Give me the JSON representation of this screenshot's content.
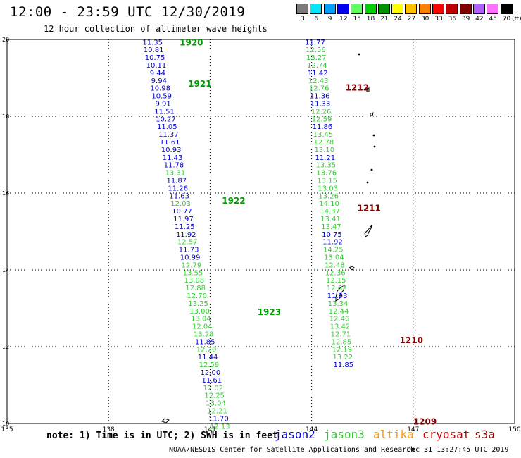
{
  "header": {
    "title": "12:00 - 23:59 UTC 12/30/2019",
    "subtitle": "12 hour collection of altimeter wave heights"
  },
  "legend": {
    "unit": "(ft)",
    "items": [
      {
        "label": "3",
        "color": "#7a7a7a"
      },
      {
        "label": "6",
        "color": "#00e8ff"
      },
      {
        "label": "9",
        "color": "#00a0ff"
      },
      {
        "label": "12",
        "color": "#0000ee"
      },
      {
        "label": "15",
        "color": "#60ff60"
      },
      {
        "label": "18",
        "color": "#00d000"
      },
      {
        "label": "21",
        "color": "#009000"
      },
      {
        "label": "24",
        "color": "#ffff00"
      },
      {
        "label": "27",
        "color": "#ffc000"
      },
      {
        "label": "30",
        "color": "#ff8000"
      },
      {
        "label": "33",
        "color": "#ff0000"
      },
      {
        "label": "36",
        "color": "#c00000"
      },
      {
        "label": "39",
        "color": "#800000"
      },
      {
        "label": "42",
        "color": "#b060ff"
      },
      {
        "label": "45",
        "color": "#ff70ff"
      },
      {
        "label": "70",
        "color": "#000000"
      }
    ]
  },
  "map": {
    "lon_ticks": [
      "135",
      "138",
      "141",
      "144",
      "147",
      "150"
    ],
    "lat_ticks": [
      "20",
      "18",
      "16",
      "14",
      "12",
      "10"
    ],
    "colors": {
      "jason2": "#0000cc",
      "jason3": "#33cc33",
      "altika": "#ff9900",
      "cryosat": "#cc0000",
      "s3a": "#990000",
      "time": "#009900",
      "timeb": "#800000"
    },
    "track_a_labels": [
      {
        "time": "1920",
        "lat": 19.94
      },
      {
        "time": "1921",
        "lat": 18.86
      },
      {
        "time": "1922",
        "lat": 15.82
      },
      {
        "time": "1923",
        "lat": 12.92
      }
    ],
    "track_b_labels": [
      {
        "time": "1212",
        "lat": 18.76
      },
      {
        "time": "1211",
        "lat": 15.62
      },
      {
        "time": "1210",
        "lat": 12.18
      },
      {
        "time": "1209",
        "lat": 10.06
      }
    ],
    "track_a": [
      {
        "v": "11.35",
        "s": "j2",
        "lon": 139.3,
        "lat": 19.94
      },
      {
        "v": "10.81",
        "s": "j2",
        "lon": 139.33,
        "lat": 19.74
      },
      {
        "v": "10.75",
        "s": "j2",
        "lon": 139.37,
        "lat": 19.54
      },
      {
        "v": "10.11",
        "s": "j2",
        "lon": 139.41,
        "lat": 19.34
      },
      {
        "v": "9.44",
        "s": "j2",
        "lon": 139.45,
        "lat": 19.14
      },
      {
        "v": "9.94",
        "s": "j2",
        "lon": 139.49,
        "lat": 18.94
      },
      {
        "v": "10.98",
        "s": "j2",
        "lon": 139.53,
        "lat": 18.74
      },
      {
        "v": "10.59",
        "s": "j2",
        "lon": 139.57,
        "lat": 18.54
      },
      {
        "v": "9.91",
        "s": "j2",
        "lon": 139.61,
        "lat": 18.34
      },
      {
        "v": "11.51",
        "s": "j2",
        "lon": 139.65,
        "lat": 18.14
      },
      {
        "v": "10.27",
        "s": "j2",
        "lon": 139.69,
        "lat": 17.94
      },
      {
        "v": "11.05",
        "s": "j2",
        "lon": 139.73,
        "lat": 17.74
      },
      {
        "v": "11.37",
        "s": "j2",
        "lon": 139.77,
        "lat": 17.54
      },
      {
        "v": "11.61",
        "s": "j2",
        "lon": 139.81,
        "lat": 17.34
      },
      {
        "v": "10.93",
        "s": "j2",
        "lon": 139.85,
        "lat": 17.14
      },
      {
        "v": "11.43",
        "s": "j2",
        "lon": 139.89,
        "lat": 16.94
      },
      {
        "v": "11.78",
        "s": "j2",
        "lon": 139.93,
        "lat": 16.74
      },
      {
        "v": "13.31",
        "s": "j3",
        "lon": 139.97,
        "lat": 16.54
      },
      {
        "v": "11.87",
        "s": "j2",
        "lon": 140.01,
        "lat": 16.34
      },
      {
        "v": "11.26",
        "s": "j2",
        "lon": 140.05,
        "lat": 16.14
      },
      {
        "v": "11.63",
        "s": "j2",
        "lon": 140.09,
        "lat": 15.94
      },
      {
        "v": "12.03",
        "s": "j3",
        "lon": 140.13,
        "lat": 15.74
      },
      {
        "v": "10.77",
        "s": "j2",
        "lon": 140.17,
        "lat": 15.54
      },
      {
        "v": "11.97",
        "s": "j2",
        "lon": 140.21,
        "lat": 15.34
      },
      {
        "v": "11.25",
        "s": "j2",
        "lon": 140.25,
        "lat": 15.14
      },
      {
        "v": "11.92",
        "s": "j2",
        "lon": 140.29,
        "lat": 14.94
      },
      {
        "v": "12.57",
        "s": "j3",
        "lon": 140.33,
        "lat": 14.74
      },
      {
        "v": "11.73",
        "s": "j2",
        "lon": 140.37,
        "lat": 14.54
      },
      {
        "v": "10.99",
        "s": "j2",
        "lon": 140.41,
        "lat": 14.34
      },
      {
        "v": "12.79",
        "s": "j3",
        "lon": 140.45,
        "lat": 14.14
      },
      {
        "v": "13.55",
        "s": "j3",
        "lon": 140.49,
        "lat": 13.94
      },
      {
        "v": "13.08",
        "s": "j3",
        "lon": 140.53,
        "lat": 13.74
      },
      {
        "v": "12.88",
        "s": "j3",
        "lon": 140.57,
        "lat": 13.54
      },
      {
        "v": "12.70",
        "s": "j3",
        "lon": 140.61,
        "lat": 13.34
      },
      {
        "v": "13.25",
        "s": "j3",
        "lon": 140.65,
        "lat": 13.14
      },
      {
        "v": "13.00",
        "s": "j3",
        "lon": 140.69,
        "lat": 12.94
      },
      {
        "v": "13.04",
        "s": "j3",
        "lon": 140.73,
        "lat": 12.74
      },
      {
        "v": "12.04",
        "s": "j3",
        "lon": 140.77,
        "lat": 12.54
      },
      {
        "v": "13.28",
        "s": "j3",
        "lon": 140.81,
        "lat": 12.34
      },
      {
        "v": "11.85",
        "s": "j2",
        "lon": 140.85,
        "lat": 12.14
      },
      {
        "v": "12.20",
        "s": "j3",
        "lon": 140.89,
        "lat": 11.94
      },
      {
        "v": "11.44",
        "s": "j2",
        "lon": 140.93,
        "lat": 11.74
      },
      {
        "v": "12.59",
        "s": "j3",
        "lon": 140.97,
        "lat": 11.54
      },
      {
        "v": "12.00",
        "s": "j2",
        "lon": 141.01,
        "lat": 11.34
      },
      {
        "v": "11.61",
        "s": "j2",
        "lon": 141.05,
        "lat": 11.14
      },
      {
        "v": "12.02",
        "s": "j3",
        "lon": 141.09,
        "lat": 10.94
      },
      {
        "v": "12.25",
        "s": "j3",
        "lon": 141.13,
        "lat": 10.74
      },
      {
        "v": "13.04",
        "s": "j3",
        "lon": 141.17,
        "lat": 10.54
      },
      {
        "v": "12.21",
        "s": "j3",
        "lon": 141.21,
        "lat": 10.34
      },
      {
        "v": "11.70",
        "s": "j2",
        "lon": 141.25,
        "lat": 10.14
      },
      {
        "v": "12.13",
        "s": "j3",
        "lon": 141.29,
        "lat": 9.94
      }
    ],
    "track_b": [
      {
        "v": "11.77",
        "s": "j2",
        "lon": 144.1,
        "lat": 19.94
      },
      {
        "v": "12.56",
        "s": "j3",
        "lon": 144.12,
        "lat": 19.74
      },
      {
        "v": "13.27",
        "s": "j3",
        "lon": 144.14,
        "lat": 19.54
      },
      {
        "v": "12.74",
        "s": "j3",
        "lon": 144.16,
        "lat": 19.34
      },
      {
        "v": "11.42",
        "s": "j2",
        "lon": 144.18,
        "lat": 19.14
      },
      {
        "v": "12.43",
        "s": "j3",
        "lon": 144.2,
        "lat": 18.94
      },
      {
        "v": "12.76",
        "s": "j3",
        "lon": 144.22,
        "lat": 18.74
      },
      {
        "v": "11.36",
        "s": "j2",
        "lon": 144.24,
        "lat": 18.54
      },
      {
        "v": "11.33",
        "s": "j2",
        "lon": 144.26,
        "lat": 18.34
      },
      {
        "v": "12.26",
        "s": "j3",
        "lon": 144.28,
        "lat": 18.14
      },
      {
        "v": "12.59",
        "s": "j3",
        "lon": 144.3,
        "lat": 17.94
      },
      {
        "v": "11.86",
        "s": "j2",
        "lon": 144.32,
        "lat": 17.74
      },
      {
        "v": "13.45",
        "s": "j3",
        "lon": 144.34,
        "lat": 17.54
      },
      {
        "v": "12.78",
        "s": "j3",
        "lon": 144.36,
        "lat": 17.34
      },
      {
        "v": "13.10",
        "s": "j3",
        "lon": 144.38,
        "lat": 17.14
      },
      {
        "v": "11.21",
        "s": "j2",
        "lon": 144.4,
        "lat": 16.94
      },
      {
        "v": "13.35",
        "s": "j3",
        "lon": 144.42,
        "lat": 16.74
      },
      {
        "v": "13.76",
        "s": "j3",
        "lon": 144.44,
        "lat": 16.54
      },
      {
        "v": "13.15",
        "s": "j3",
        "lon": 144.46,
        "lat": 16.34
      },
      {
        "v": "13.03",
        "s": "j3",
        "lon": 144.48,
        "lat": 16.14
      },
      {
        "v": "13.26",
        "s": "j3",
        "lon": 144.5,
        "lat": 15.94
      },
      {
        "v": "14.10",
        "s": "j3",
        "lon": 144.52,
        "lat": 15.74
      },
      {
        "v": "14.37",
        "s": "j3",
        "lon": 144.54,
        "lat": 15.54
      },
      {
        "v": "13.41",
        "s": "j3",
        "lon": 144.56,
        "lat": 15.34
      },
      {
        "v": "13.47",
        "s": "j3",
        "lon": 144.58,
        "lat": 15.14
      },
      {
        "v": "10.75",
        "s": "j2",
        "lon": 144.6,
        "lat": 14.94
      },
      {
        "v": "11.92",
        "s": "j2",
        "lon": 144.62,
        "lat": 14.74
      },
      {
        "v": "14.25",
        "s": "j3",
        "lon": 144.64,
        "lat": 14.54
      },
      {
        "v": "13.04",
        "s": "j3",
        "lon": 144.66,
        "lat": 14.34
      },
      {
        "v": "12.48",
        "s": "j3",
        "lon": 144.68,
        "lat": 14.14
      },
      {
        "v": "12.36",
        "s": "j3",
        "lon": 144.7,
        "lat": 13.94
      },
      {
        "v": "12.15",
        "s": "j3",
        "lon": 144.72,
        "lat": 13.74
      },
      {
        "v": "12.62",
        "s": "j3",
        "lon": 144.74,
        "lat": 13.54
      },
      {
        "v": "11.93",
        "s": "j2",
        "lon": 144.76,
        "lat": 13.34
      },
      {
        "v": "13.34",
        "s": "j3",
        "lon": 144.78,
        "lat": 13.14
      },
      {
        "v": "12.44",
        "s": "j3",
        "lon": 144.8,
        "lat": 12.94
      },
      {
        "v": "12.46",
        "s": "j3",
        "lon": 144.82,
        "lat": 12.74
      },
      {
        "v": "13.42",
        "s": "j3",
        "lon": 144.84,
        "lat": 12.54
      },
      {
        "v": "12.71",
        "s": "j3",
        "lon": 144.86,
        "lat": 12.34
      },
      {
        "v": "12.85",
        "s": "j3",
        "lon": 144.88,
        "lat": 12.14
      },
      {
        "v": "12.19",
        "s": "j3",
        "lon": 144.9,
        "lat": 11.94
      },
      {
        "v": "13.22",
        "s": "j3",
        "lon": 144.92,
        "lat": 11.74
      },
      {
        "v": "11.85",
        "s": "j2",
        "lon": 144.94,
        "lat": 11.54
      }
    ]
  },
  "footer": {
    "note": "note: 1) Time is in UTC; 2) SWH is in feet",
    "jason2": "jason2",
    "jason3": "jason3",
    "altika": "altika",
    "cryosat": "cryosat",
    "s3a": "s3a",
    "credit": "NOAA/NESDIS Center for Satellite Applications and Research",
    "stamp": "Dec 31 13:27:45 UTC 2019"
  }
}
